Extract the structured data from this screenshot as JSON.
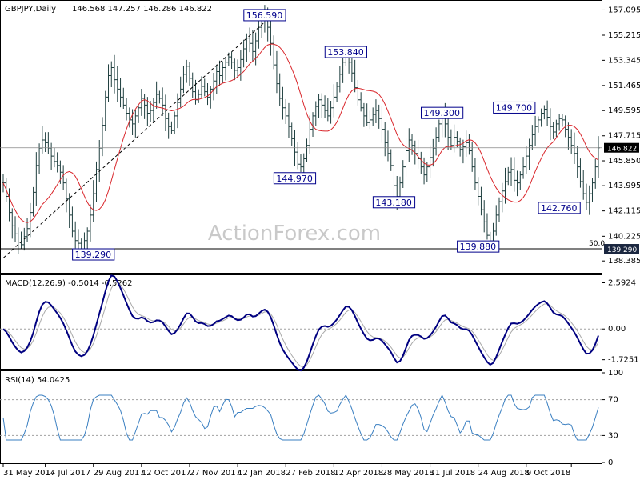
{
  "chart_data": {
    "type": "line",
    "instrument_label": "GBPJPY,Daily",
    "ohlc_label": "146.568 147.257 146.286 146.822",
    "watermark": "ActionForex.com",
    "price_pane": {
      "ylim": [
        137.8,
        157.6
      ],
      "y_ticks": [
        "157.095",
        "155.215",
        "153.345",
        "151.465",
        "149.595",
        "147.715",
        "145.850",
        "143.995",
        "142.115",
        "140.225",
        "138.385"
      ],
      "last_price": "146.822",
      "last_price_value": 146.822,
      "fib_level_label": "50.0",
      "support_line_value": 139.29,
      "support_line_label": "139.290",
      "trendline": [
        [
          0,
          138.6
        ],
        [
          87,
          156.2
        ]
      ],
      "annotations": [
        {
          "label": "156.590",
          "i": 87,
          "price": 156.59
        },
        {
          "label": "153.840",
          "i": 114,
          "price": 153.84
        },
        {
          "label": "144.970",
          "i": 97,
          "price": 144.97
        },
        {
          "label": "149.300",
          "i": 146,
          "price": 149.3
        },
        {
          "label": "143.180",
          "i": 130,
          "price": 143.18
        },
        {
          "label": "149.700",
          "i": 170,
          "price": 149.7
        },
        {
          "label": "139.290",
          "i": 30,
          "price": 139.29
        },
        {
          "label": "139.880",
          "i": 158,
          "price": 139.88
        },
        {
          "label": "142.760",
          "i": 185,
          "price": 142.76
        }
      ],
      "close": [
        144.2,
        143.2,
        142.0,
        141.0,
        140.4,
        139.8,
        139.6,
        140.2,
        140.8,
        142.0,
        143.5,
        145.5,
        146.8,
        147.4,
        147.2,
        146.8,
        146.2,
        145.8,
        145.5,
        145.0,
        144.2,
        143.0,
        141.8,
        140.6,
        139.9,
        139.7,
        139.5,
        139.9,
        140.6,
        141.8,
        143.4,
        145.2,
        146.8,
        148.5,
        150.6,
        152.2,
        152.8,
        151.9,
        151.2,
        150.6,
        150.0,
        149.4,
        148.9,
        148.6,
        149.2,
        149.8,
        150.5,
        150.0,
        149.4,
        149.6,
        150.2,
        150.8,
        150.5,
        150.0,
        149.0,
        148.4,
        148.1,
        149.2,
        150.2,
        151.2,
        152.3,
        152.9,
        152.0,
        151.0,
        150.4,
        150.8,
        151.4,
        151.0,
        150.6,
        151.2,
        151.8,
        152.5,
        152.2,
        152.8,
        153.2,
        153.6,
        153.2,
        152.6,
        152.8,
        153.4,
        154.2,
        155.0,
        154.6,
        154.0,
        154.8,
        155.8,
        156.4,
        156.59,
        155.8,
        154.6,
        153.0,
        151.6,
        150.5,
        149.8,
        149.2,
        148.4,
        147.5,
        146.5,
        145.6,
        145.4,
        146.0,
        147.0,
        148.2,
        149.2,
        149.9,
        150.4,
        150.0,
        149.6,
        149.2,
        149.8,
        150.6,
        151.4,
        152.3,
        153.2,
        153.84,
        153.2,
        152.4,
        151.3,
        150.4,
        149.8,
        149.2,
        148.7,
        148.9,
        149.3,
        149.6,
        149.0,
        148.2,
        147.2,
        146.4,
        145.5,
        144.0,
        143.18,
        144.2,
        145.4,
        146.6,
        147.4,
        147.0,
        146.4,
        146.0,
        145.4,
        144.8,
        145.4,
        146.1,
        146.8,
        147.6,
        148.6,
        149.3,
        148.6,
        147.6,
        147.0,
        147.6,
        147.3,
        146.7,
        146.9,
        147.2,
        146.6,
        145.4,
        144.2,
        143.2,
        142.2,
        141.3,
        140.3,
        139.88,
        140.6,
        141.8,
        142.8,
        143.6,
        144.3,
        145.0,
        145.2,
        144.4,
        144.2,
        144.8,
        145.4,
        146.2,
        147.0,
        147.8,
        148.4,
        148.9,
        149.4,
        149.7,
        149.1,
        148.4,
        148.0,
        148.6,
        149.0,
        148.9,
        148.2,
        147.6,
        147.0,
        146.4,
        145.4,
        144.3,
        143.4,
        142.76,
        143.4,
        144.2,
        145.4,
        146.822
      ]
    },
    "macd_pane": {
      "label": "MACD(12,26,9) -0.5014 -0.5262",
      "ylim": [
        -2.1,
        2.75
      ],
      "y_ticks": [
        "2.5924",
        "0.00",
        "-1.7251"
      ],
      "zero_level": 0
    },
    "rsi_pane": {
      "label": "RSI(14) 54.0425",
      "ylim": [
        0,
        100
      ],
      "y_ticks": [
        "100",
        "70",
        "30",
        "0"
      ],
      "levels": [
        30,
        70
      ]
    },
    "x_axis": {
      "tick_labels": [
        {
          "label": "31 May 2017",
          "i": 0
        },
        {
          "label": "14 Jul 2017",
          "i": 14
        },
        {
          "label": "29 Aug 2017",
          "i": 30
        },
        {
          "label": "12 Oct 2017",
          "i": 46
        },
        {
          "label": "27 Nov 2017",
          "i": 62
        },
        {
          "label": "12 Jan 2018",
          "i": 78
        },
        {
          "label": "27 Feb 2018",
          "i": 94
        },
        {
          "label": "12 Apr 2018",
          "i": 110
        },
        {
          "label": "28 May 2018",
          "i": 126
        },
        {
          "label": "11 Jul 2018",
          "i": 142
        },
        {
          "label": "24 Aug 2018",
          "i": 158
        },
        {
          "label": "9 Oct 2018",
          "i": 174
        },
        {
          "label": "",
          "i": 189
        }
      ]
    },
    "colors": {
      "price_bars": "#1f3f3f",
      "moving_average": "#d9262b",
      "trendline": "#000000",
      "annotation_text": "#00008b",
      "macd_main": "#000080",
      "macd_signal": "#a9a9a9",
      "rsi_line": "#3a7fc1",
      "price_marker_bg": "#000000",
      "price_marker_text": "#ffffff",
      "support_marker_bg": "#1b2740",
      "level_dots": "#a0a0a0"
    }
  }
}
